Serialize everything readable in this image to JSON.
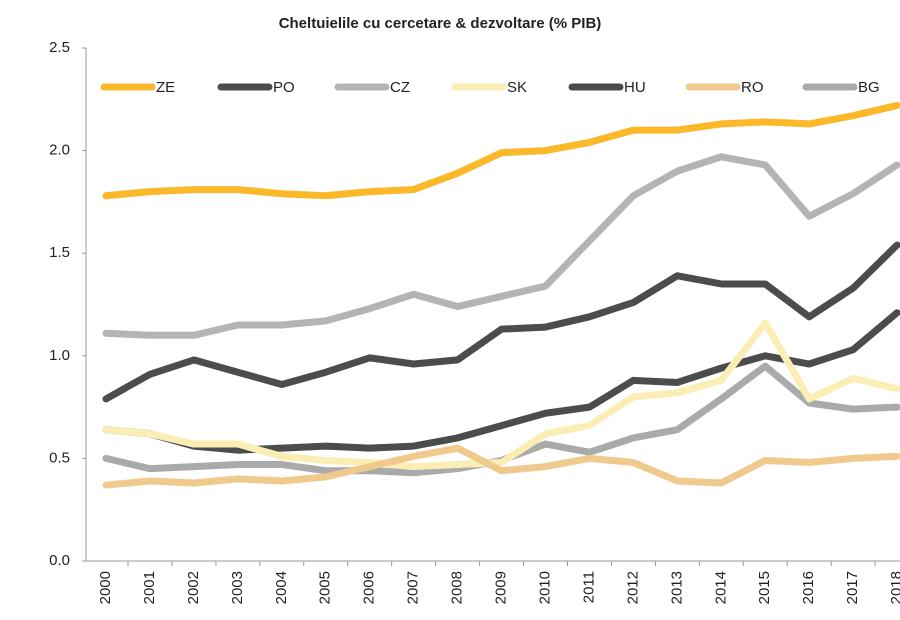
{
  "chart_data": {
    "type": "line",
    "title": "Cheltuielile cu cercetare & dezvoltare (% PIB)",
    "categories": [
      "2000",
      "2001",
      "2002",
      "2003",
      "2004",
      "2005",
      "2006",
      "2007",
      "2008",
      "2009",
      "2010",
      "2011",
      "2012",
      "2013",
      "2014",
      "2015",
      "2016",
      "2017",
      "2018"
    ],
    "ylim": [
      0,
      2.5
    ],
    "yticks": [
      {
        "value": 0,
        "label": "0.0"
      },
      0.5,
      {
        "value": 1,
        "label": "1.0"
      },
      1.5,
      {
        "value": 2,
        "label": "2.0"
      },
      2.5
    ],
    "legend": "top",
    "series": [
      {
        "name": "ZE",
        "color": "#fbb829",
        "values": [
          1.78,
          1.8,
          1.81,
          1.81,
          1.79,
          1.78,
          1.8,
          1.81,
          1.89,
          1.99,
          2.0,
          2.04,
          2.1,
          2.1,
          2.13,
          2.14,
          2.13,
          2.17,
          2.22
        ]
      },
      {
        "name": "PO",
        "color": "#4b4d4d",
        "values": [
          0.64,
          0.62,
          0.56,
          0.54,
          0.55,
          0.56,
          0.55,
          0.56,
          0.6,
          0.66,
          0.72,
          0.75,
          0.88,
          0.87,
          0.94,
          1.0,
          0.96,
          1.03,
          1.21
        ]
      },
      {
        "name": "CZ",
        "color": "#b3b5b5",
        "values": [
          1.11,
          1.1,
          1.1,
          1.15,
          1.15,
          1.17,
          1.23,
          1.3,
          1.24,
          1.29,
          1.34,
          1.56,
          1.78,
          1.9,
          1.97,
          1.93,
          1.68,
          1.79,
          1.93
        ]
      },
      {
        "name": "SK",
        "color": "#fbeeb5",
        "values": [
          0.64,
          0.62,
          0.57,
          0.57,
          0.51,
          0.49,
          0.48,
          0.46,
          0.47,
          0.48,
          0.62,
          0.66,
          0.8,
          0.82,
          0.88,
          1.16,
          0.79,
          0.89,
          0.84
        ]
      },
      {
        "name": "HU",
        "color": "#4b4d4d",
        "values": [
          0.79,
          0.91,
          0.98,
          0.92,
          0.86,
          0.92,
          0.99,
          0.96,
          0.98,
          1.13,
          1.14,
          1.19,
          1.26,
          1.39,
          1.35,
          1.35,
          1.19,
          1.33,
          1.54
        ]
      },
      {
        "name": "RO",
        "color": "#f0ca8c",
        "values": [
          0.37,
          0.39,
          0.38,
          0.4,
          0.39,
          0.41,
          0.46,
          0.51,
          0.55,
          0.44,
          0.46,
          0.5,
          0.48,
          0.39,
          0.38,
          0.49,
          0.48,
          0.5,
          0.51
        ]
      },
      {
        "name": "BG",
        "color": "#a9abab",
        "values": [
          0.5,
          0.45,
          0.46,
          0.47,
          0.47,
          0.44,
          0.44,
          0.43,
          0.45,
          0.49,
          0.57,
          0.53,
          0.6,
          0.64,
          0.79,
          0.95,
          0.77,
          0.74,
          0.75
        ]
      }
    ]
  }
}
